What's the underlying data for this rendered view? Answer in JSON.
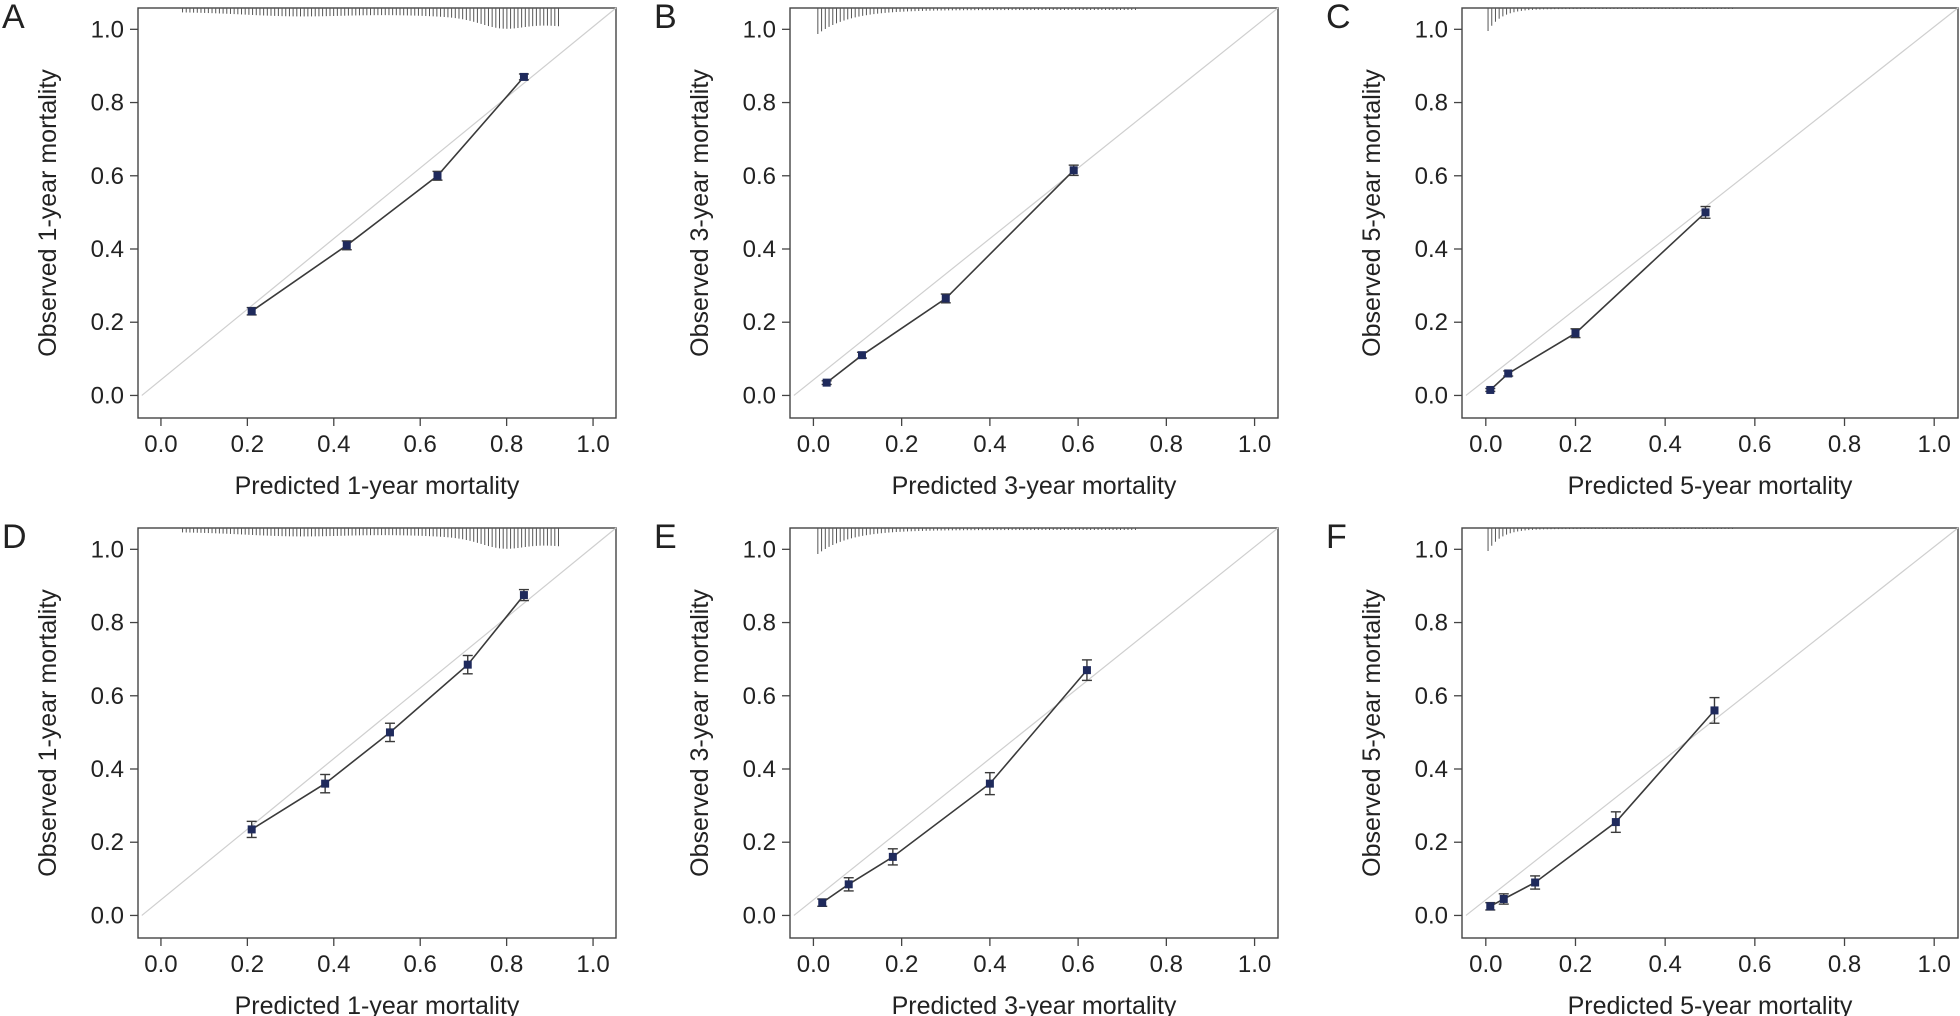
{
  "figure": {
    "colors": {
      "frame": "#444444",
      "curve": "#3a3a3a",
      "diagonal": "#cfcfcf",
      "point": "#1f2a5c",
      "rug": "#555555",
      "text": "#222222"
    }
  },
  "chart_data": [
    {
      "panel": "A",
      "type": "line",
      "xlabel": "Predicted 1-year mortality",
      "ylabel": "Observed 1-year mortality",
      "xlim": [
        0,
        1
      ],
      "ylim": [
        0,
        1
      ],
      "xticks": [
        "0.0",
        "0.2",
        "0.4",
        "0.6",
        "0.8",
        "1.0"
      ],
      "yticks": [
        "0.0",
        "0.2",
        "0.4",
        "0.6",
        "0.8",
        "1.0"
      ],
      "grid": false,
      "reference_line": "diagonal",
      "x": [
        0.21,
        0.43,
        0.64,
        0.84
      ],
      "y": [
        0.23,
        0.41,
        0.6,
        0.87
      ],
      "err": [
        0.01,
        0.012,
        0.012,
        0.008
      ],
      "rug": {
        "from": 0.05,
        "to": 0.92,
        "profile": "peak-high"
      }
    },
    {
      "panel": "B",
      "type": "line",
      "xlabel": "Predicted 3-year mortality",
      "ylabel": "Observed 3-year mortality",
      "xlim": [
        0,
        1
      ],
      "ylim": [
        0,
        1
      ],
      "xticks": [
        "0.0",
        "0.2",
        "0.4",
        "0.6",
        "0.8",
        "1.0"
      ],
      "yticks": [
        "0.0",
        "0.2",
        "0.4",
        "0.6",
        "0.8",
        "1.0"
      ],
      "grid": false,
      "reference_line": "diagonal",
      "x": [
        0.03,
        0.11,
        0.3,
        0.59
      ],
      "y": [
        0.035,
        0.11,
        0.265,
        0.615
      ],
      "err": [
        0.005,
        0.008,
        0.012,
        0.014
      ],
      "rug": {
        "from": 0.01,
        "to": 0.73,
        "profile": "peak-low"
      }
    },
    {
      "panel": "C",
      "type": "line",
      "xlabel": "Predicted 5-year mortality",
      "ylabel": "Observed 5-year mortality",
      "xlim": [
        0,
        1
      ],
      "ylim": [
        0,
        1
      ],
      "xticks": [
        "0.0",
        "0.2",
        "0.4",
        "0.6",
        "0.8",
        "1.0"
      ],
      "yticks": [
        "0.0",
        "0.2",
        "0.4",
        "0.6",
        "0.8",
        "1.0"
      ],
      "grid": false,
      "reference_line": "diagonal",
      "x": [
        0.01,
        0.05,
        0.2,
        0.49
      ],
      "y": [
        0.015,
        0.06,
        0.17,
        0.5
      ],
      "err": [
        0.004,
        0.007,
        0.012,
        0.016
      ],
      "rug": {
        "from": 0.005,
        "to": 0.55,
        "profile": "peak-lowest"
      }
    },
    {
      "panel": "D",
      "type": "line",
      "xlabel": "Predicted 1-year mortality",
      "ylabel": "Observed 1-year mortality",
      "xlim": [
        0,
        1
      ],
      "ylim": [
        0,
        1
      ],
      "xticks": [
        "0.0",
        "0.2",
        "0.4",
        "0.6",
        "0.8",
        "1.0"
      ],
      "yticks": [
        "0.0",
        "0.2",
        "0.4",
        "0.6",
        "0.8",
        "1.0"
      ],
      "grid": false,
      "reference_line": "diagonal",
      "x": [
        0.21,
        0.38,
        0.53,
        0.71,
        0.84
      ],
      "y": [
        0.235,
        0.36,
        0.5,
        0.685,
        0.875
      ],
      "err": [
        0.022,
        0.025,
        0.025,
        0.025,
        0.015
      ],
      "rug": {
        "from": 0.05,
        "to": 0.92,
        "profile": "peak-high"
      }
    },
    {
      "panel": "E",
      "type": "line",
      "xlabel": "Predicted 3-year mortality",
      "ylabel": "Observed 3-year mortality",
      "xlim": [
        0,
        1
      ],
      "ylim": [
        0,
        1
      ],
      "xticks": [
        "0.0",
        "0.2",
        "0.4",
        "0.6",
        "0.8",
        "1.0"
      ],
      "yticks": [
        "0.0",
        "0.2",
        "0.4",
        "0.6",
        "0.8",
        "1.0"
      ],
      "grid": false,
      "reference_line": "diagonal",
      "x": [
        0.02,
        0.08,
        0.18,
        0.4,
        0.62
      ],
      "y": [
        0.035,
        0.085,
        0.16,
        0.36,
        0.67
      ],
      "err": [
        0.01,
        0.018,
        0.022,
        0.03,
        0.028
      ],
      "rug": {
        "from": 0.01,
        "to": 0.73,
        "profile": "peak-low"
      }
    },
    {
      "panel": "F",
      "type": "line",
      "xlabel": "Predicted 5-year mortality",
      "ylabel": "Observed 5-year mortality",
      "xlim": [
        0,
        1
      ],
      "ylim": [
        0,
        1
      ],
      "xticks": [
        "0.0",
        "0.2",
        "0.4",
        "0.6",
        "0.8",
        "1.0"
      ],
      "yticks": [
        "0.0",
        "0.2",
        "0.4",
        "0.6",
        "0.8",
        "1.0"
      ],
      "grid": false,
      "reference_line": "diagonal",
      "x": [
        0.01,
        0.04,
        0.11,
        0.29,
        0.51
      ],
      "y": [
        0.025,
        0.045,
        0.09,
        0.255,
        0.56
      ],
      "err": [
        0.01,
        0.014,
        0.018,
        0.028,
        0.035
      ],
      "rug": {
        "from": 0.005,
        "to": 0.55,
        "profile": "peak-lowest"
      }
    }
  ]
}
